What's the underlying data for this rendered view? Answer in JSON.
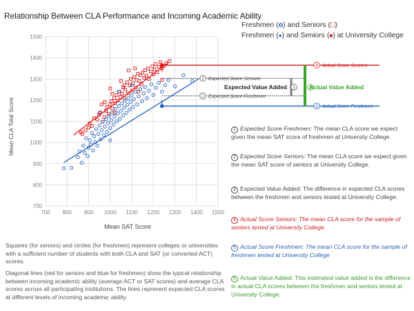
{
  "title": "Relationship Between CLA Performance and Incoming Academic Ability",
  "legend": {
    "line1_prefix": "Freshmen (",
    "line1_mid": ") and Seniors (",
    "line1_suffix": ")",
    "line2_prefix": "Freshmen (",
    "line2_mid": ") and Seniors (",
    "line2_suffix": ") at University College",
    "circle_glyph": "o",
    "square_glyph": "□",
    "circle_dot_glyph": "●",
    "square_dot_glyph": "■"
  },
  "colors": {
    "seniors": "#e31a1c",
    "freshmen": "#1f5bbf",
    "value_added": "#3aa52a",
    "grid": "#d9d9d9",
    "axis_text": "#7f7f7f"
  },
  "chart_data": {
    "type": "scatter",
    "xlabel": "Mean SAT Score",
    "ylabel": "Mean CLA Total Score",
    "xlim": [
      700,
      1500
    ],
    "ylim": [
      700,
      1500
    ],
    "xticks": [
      700,
      800,
      900,
      1000,
      1100,
      1200,
      1300,
      1400,
      1500
    ],
    "yticks": [
      700,
      800,
      900,
      1000,
      1100,
      1200,
      1300,
      1400,
      1500
    ],
    "grid": true,
    "series": [
      {
        "marker": "square",
        "color": "#e31a1c",
        "points": [
          [
            863,
            1048
          ],
          [
            870,
            1040
          ],
          [
            885,
            1057
          ],
          [
            900,
            1070
          ],
          [
            905,
            1090
          ],
          [
            915,
            1078
          ],
          [
            925,
            1115
          ],
          [
            940,
            1108
          ],
          [
            948,
            1130
          ],
          [
            955,
            1142
          ],
          [
            965,
            1098
          ],
          [
            972,
            1120
          ],
          [
            980,
            1150
          ],
          [
            985,
            1168
          ],
          [
            992,
            1135
          ],
          [
            1000,
            1180
          ],
          [
            1005,
            1195
          ],
          [
            1010,
            1160
          ],
          [
            1018,
            1210
          ],
          [
            1022,
            1185
          ],
          [
            1030,
            1225
          ],
          [
            1035,
            1198
          ],
          [
            1042,
            1240
          ],
          [
            1048,
            1215
          ],
          [
            1055,
            1230
          ],
          [
            1060,
            1260
          ],
          [
            1066,
            1210
          ],
          [
            1070,
            1250
          ],
          [
            1078,
            1285
          ],
          [
            1082,
            1232
          ],
          [
            1090,
            1270
          ],
          [
            1095,
            1300
          ],
          [
            1100,
            1245
          ],
          [
            1105,
            1280
          ],
          [
            1112,
            1310
          ],
          [
            1118,
            1260
          ],
          [
            1122,
            1295
          ],
          [
            1128,
            1325
          ],
          [
            1135,
            1290
          ],
          [
            1140,
            1318
          ],
          [
            1145,
            1275
          ],
          [
            1150,
            1330
          ],
          [
            1158,
            1305
          ],
          [
            1162,
            1342
          ],
          [
            1168,
            1315
          ],
          [
            1175,
            1350
          ],
          [
            1180,
            1300
          ],
          [
            1188,
            1335
          ],
          [
            1195,
            1360
          ],
          [
            1200,
            1322
          ],
          [
            1205,
            1345
          ],
          [
            1210,
            1370
          ],
          [
            1218,
            1332
          ],
          [
            1225,
            1358
          ],
          [
            1232,
            1380
          ],
          [
            1240,
            1350
          ],
          [
            1250,
            1362
          ],
          [
            1260,
            1375
          ],
          [
            1275,
            1385
          ],
          [
            1240,
            1295
          ],
          [
            960,
            1180
          ],
          [
            1010,
            1230
          ],
          [
            1050,
            1290
          ],
          [
            1000,
            1255
          ],
          [
            1085,
            1340
          ],
          [
            1130,
            1240
          ],
          [
            1020,
            1140
          ],
          [
            975,
            1190
          ],
          [
            1065,
            1270
          ],
          [
            1115,
            1350
          ]
        ]
      },
      {
        "marker": "circle",
        "color": "#1f5bbf",
        "points": [
          [
            785,
            878
          ],
          [
            820,
            880
          ],
          [
            850,
            930
          ],
          [
            858,
            958
          ],
          [
            868,
            905
          ],
          [
            875,
            985
          ],
          [
            882,
            950
          ],
          [
            888,
            1020
          ],
          [
            895,
            935
          ],
          [
            900,
            975
          ],
          [
            905,
            1010
          ],
          [
            910,
            990
          ],
          [
            915,
            1045
          ],
          [
            920,
            962
          ],
          [
            925,
            1030
          ],
          [
            930,
            1002
          ],
          [
            935,
            1062
          ],
          [
            940,
            985
          ],
          [
            945,
            1040
          ],
          [
            950,
            1080
          ],
          [
            955,
            1015
          ],
          [
            960,
            1058
          ],
          [
            965,
            1098
          ],
          [
            970,
            1035
          ],
          [
            975,
            1075
          ],
          [
            980,
            1110
          ],
          [
            985,
            1050
          ],
          [
            990,
            1092
          ],
          [
            995,
            1125
          ],
          [
            1000,
            1068
          ],
          [
            1005,
            1105
          ],
          [
            1010,
            1140
          ],
          [
            1015,
            1085
          ],
          [
            1020,
            1122
          ],
          [
            1025,
            1158
          ],
          [
            1030,
            1100
          ],
          [
            1035,
            1138
          ],
          [
            1040,
            1172
          ],
          [
            1045,
            1112
          ],
          [
            1050,
            1150
          ],
          [
            1055,
            1185
          ],
          [
            1060,
            1128
          ],
          [
            1065,
            1165
          ],
          [
            1070,
            1198
          ],
          [
            1075,
            1140
          ],
          [
            1080,
            1178
          ],
          [
            1085,
            1210
          ],
          [
            1090,
            1155
          ],
          [
            1095,
            1192
          ],
          [
            1100,
            1225
          ],
          [
            1105,
            1168
          ],
          [
            1110,
            1205
          ],
          [
            1118,
            1240
          ],
          [
            1125,
            1180
          ],
          [
            1132,
            1218
          ],
          [
            1140,
            1252
          ],
          [
            1148,
            1195
          ],
          [
            1155,
            1232
          ],
          [
            1162,
            1262
          ],
          [
            1170,
            1210
          ],
          [
            1180,
            1245
          ],
          [
            1190,
            1275
          ],
          [
            1200,
            1225
          ],
          [
            1212,
            1258
          ],
          [
            1225,
            1282
          ],
          [
            1240,
            1240
          ],
          [
            1255,
            1270
          ],
          [
            1270,
            1295
          ],
          [
            1300,
            1265
          ],
          [
            1340,
            1318
          ],
          [
            1380,
            1290
          ],
          [
            1040,
            1240
          ],
          [
            1000,
            1010
          ],
          [
            950,
            1140
          ],
          [
            1100,
            1270
          ]
        ]
      }
    ],
    "regression": [
      {
        "series": "Seniors",
        "color": "#e31a1c",
        "x": [
          830,
          1270
        ],
        "y": [
          1035,
          1378
        ]
      },
      {
        "series": "Freshmen",
        "color": "#1f5bbf",
        "x": [
          785,
          1410
        ],
        "y": [
          905,
          1300
        ]
      }
    ],
    "university_college": {
      "senior_sat": 1240,
      "senior_actual": 1365,
      "freshman_sat": 1240,
      "freshman_actual": 1172,
      "expected_senior": 1303,
      "expected_freshman": 1220
    }
  },
  "callouts": {
    "actual_senior": {
      "num": "4",
      "text": "Actual Score Seniors"
    },
    "expected_senior": {
      "num": "2",
      "text": "Expected Score Seniors"
    },
    "expected_freshman": {
      "num": "1",
      "text": "Expected Score Freshmen"
    },
    "actual_freshman": {
      "num": "5",
      "text": "Actual Score Freshmen"
    },
    "expected_value_added": {
      "num": "3",
      "text": "Expected Value Added"
    },
    "actual_value_added": {
      "num": "6",
      "text": "Actual Value Added"
    }
  },
  "annotations": [
    {
      "num": "1",
      "lead": "Expected Score Freshmen:",
      "text": " The mean CLA score we expect given the mean SAT score of freshmen at University College.",
      "style": "gray"
    },
    {
      "num": "2",
      "lead": "Expected Score Seniors:",
      "text": " The mean CLA score we expect given the mean SAT score of seniors at University College.",
      "style": "gray"
    },
    {
      "num": "3",
      "lead": "",
      "text": "Expected Value Added: The difference in expected CLA scores between the freshmen and seniors tested at University College.",
      "style": "gray"
    },
    {
      "num": "4",
      "lead": "",
      "text": "Actual Score Seniors: The mean CLA score for the sample of seniors tested at University College.",
      "style": "red"
    },
    {
      "num": "5",
      "lead": "",
      "text": "Actual Score Freshmen: The mean CLA score for the sample of freshmen tested at University College",
      "style": "blue"
    },
    {
      "num": "6",
      "lead": "",
      "text": "Actual Value Added: This estimated value added is the difference in actual CLA scores between the freshmen and seniors tested at University College.",
      "style": "green"
    }
  ],
  "footnotes": [
    "Squares (for seniors) and circles (for freshmen) represent colleges or universities with a sufficient number of students with both CLA and SAT (or converted ACT) scores.",
    "Diagonal lines (red for seniors and blue for freshmen) show the typical relationship between incoming academic ability (average ACT or SAT scores) and average CLA scores across all participating institutions. The lines represent expected CLA scores at different levels of incoming academic ability."
  ]
}
